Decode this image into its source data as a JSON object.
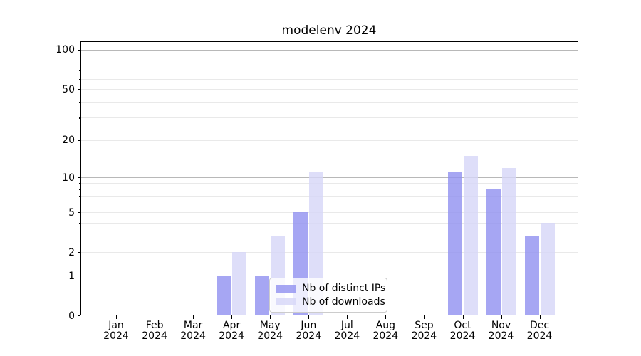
{
  "chart_data": {
    "type": "bar",
    "title": "modelenv 2024",
    "categories": [
      "Jan",
      "Feb",
      "Mar",
      "Apr",
      "May",
      "Jun",
      "Jul",
      "Aug",
      "Sep",
      "Oct",
      "Nov",
      "Dec"
    ],
    "category_year": "2024",
    "series": [
      {
        "name": "Nb of distinct IPs",
        "color": "rgba(144,144,240,0.8)",
        "values": [
          0,
          0,
          0,
          1,
          1,
          5,
          0,
          0,
          0,
          11,
          8,
          3
        ]
      },
      {
        "name": "Nb of downloads",
        "color": "rgba(214,214,247,0.8)",
        "values": [
          0,
          0,
          0,
          2,
          3,
          11,
          0,
          0,
          0,
          15,
          12,
          4
        ]
      }
    ],
    "xlabel": "",
    "ylabel": "",
    "yscale": "log1p",
    "ylim": [
      0,
      116
    ],
    "yticks": [
      0,
      1,
      2,
      5,
      10,
      20,
      50,
      100
    ],
    "grid_major": [
      1,
      10,
      100
    ],
    "grid_minor": [
      2,
      3,
      4,
      5,
      6,
      7,
      8,
      9,
      20,
      30,
      40,
      50,
      60,
      70,
      80,
      90
    ],
    "grid": true,
    "legend_position": "lower center"
  },
  "colors": {
    "background": "#ffffff",
    "axis": "#000000",
    "grid_major": "#b8b8b8",
    "grid_minor": "#e9e9e9",
    "legend_border": "#cccccc"
  }
}
